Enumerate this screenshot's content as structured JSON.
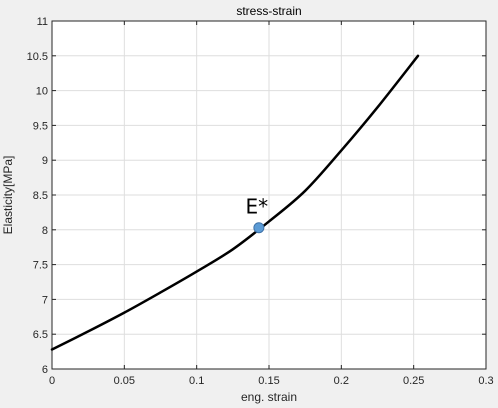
{
  "chart_data": {
    "type": "line",
    "title": "stress-strain",
    "xlabel": "eng. strain",
    "ylabel": "Elasticity[MPa]",
    "xlim": [
      0,
      0.3
    ],
    "ylim": [
      6,
      11
    ],
    "xticks": [
      0,
      0.05,
      0.1,
      0.15,
      0.2,
      0.25,
      0.3
    ],
    "xtick_labels": [
      "0",
      "0.05",
      "0.1",
      "0.15",
      "0.2",
      "0.25",
      "0.3"
    ],
    "yticks": [
      6,
      6.5,
      7,
      7.5,
      8,
      8.5,
      9,
      9.5,
      10,
      10.5,
      11
    ],
    "ytick_labels": [
      "6",
      "6.5",
      "7",
      "7.5",
      "8",
      "8.5",
      "9",
      "9.5",
      "10",
      "10.5",
      "11"
    ],
    "grid": true,
    "series": [
      {
        "color": "#000000",
        "x": [
          0,
          0.025,
          0.05,
          0.075,
          0.1,
          0.125,
          0.15,
          0.175,
          0.2,
          0.225,
          0.253
        ],
        "y": [
          6.28,
          6.54,
          6.81,
          7.1,
          7.4,
          7.72,
          8.12,
          8.56,
          9.14,
          9.76,
          10.5
        ]
      }
    ],
    "annotations": [
      {
        "label": "E*",
        "x": 0.143,
        "y": 8.03,
        "marker_color": "#5b9bd5"
      }
    ]
  }
}
